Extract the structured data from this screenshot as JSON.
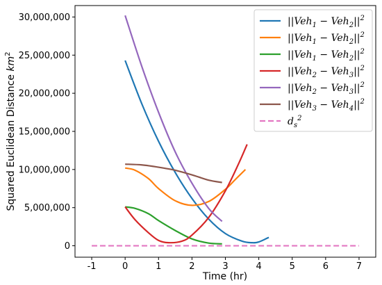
{
  "chart_data": {
    "type": "line",
    "xlabel": "Time (hr)",
    "ylabel": "Squared Euclidean Distance km²",
    "xlim": [
      -1.5,
      7.5
    ],
    "ylim": [
      -1500000,
      31500000
    ],
    "xticks": [
      -1,
      0,
      1,
      2,
      3,
      4,
      5,
      6,
      7
    ],
    "xtick_labels": [
      "-1",
      "0",
      "1",
      "2",
      "3",
      "4",
      "5",
      "6",
      "7"
    ],
    "yticks": [
      0,
      5000000,
      10000000,
      15000000,
      20000000,
      25000000,
      30000000
    ],
    "ytick_labels": [
      "0",
      "5,000,000",
      "10,000,000",
      "15,000,000",
      "20,000,000",
      "25,000,000",
      "30,000,000"
    ],
    "grid": false,
    "legend_position": "top-right",
    "series": [
      {
        "name": "||Veh₁ − Veh₂||²",
        "color": "#1f77b4",
        "x": [
          0,
          0.5,
          1.0,
          1.5,
          2.0,
          2.5,
          3.0,
          3.5,
          3.8,
          4.0,
          4.3
        ],
        "y": [
          24300000,
          18600000,
          13700000,
          9600000,
          6200000,
          3500000,
          1600000,
          600000,
          400000,
          500000,
          1100000
        ]
      },
      {
        "name": "||Veh₁ − Veh₂||²",
        "color": "#ff7f0e",
        "x": [
          0,
          0.3,
          0.7,
          1.0,
          1.5,
          2.0,
          2.5,
          3.0,
          3.3,
          3.6
        ],
        "y": [
          10200000,
          9900000,
          8800000,
          7500000,
          5900000,
          5300000,
          5800000,
          7400000,
          8700000,
          10000000
        ]
      },
      {
        "name": "||Veh₁ − Veh₂||²",
        "color": "#2ca02c",
        "x": [
          0,
          0.3,
          0.7,
          1.0,
          1.5,
          2.0,
          2.5,
          2.9
        ],
        "y": [
          5100000,
          4900000,
          4200000,
          3300000,
          2000000,
          900000,
          350000,
          250000
        ]
      },
      {
        "name": "||Veh₂ − Veh₃||²",
        "color": "#d62728",
        "x": [
          0,
          0.3,
          0.7,
          1.0,
          1.3,
          1.7,
          2.0,
          2.5,
          3.0,
          3.4,
          3.65
        ],
        "y": [
          5100000,
          3400000,
          1700000,
          700000,
          400000,
          600000,
          1400000,
          3700000,
          7200000,
          10800000,
          13300000
        ]
      },
      {
        "name": "||Veh₂ − Veh₃||²",
        "color": "#9467bd",
        "x": [
          0,
          0.5,
          1.0,
          1.5,
          2.0,
          2.5,
          2.9
        ],
        "y": [
          30200000,
          23500000,
          17500000,
          12300000,
          8200000,
          4900000,
          3200000
        ]
      },
      {
        "name": "||Veh₃ − Veh₄||²",
        "color": "#8c564b",
        "x": [
          0,
          0.5,
          1.0,
          1.5,
          2.0,
          2.5,
          2.9
        ],
        "y": [
          10700000,
          10600000,
          10300000,
          9900000,
          9300000,
          8600000,
          8300000
        ]
      },
      {
        "name": "d_s²",
        "color": "#e377c2",
        "dashed": true,
        "x": [
          -1,
          7
        ],
        "y": [
          0,
          0
        ]
      }
    ]
  },
  "legend": {
    "entries": [
      {
        "pre": "||Veh",
        "sub1": "1",
        "mid": " − Veh",
        "sub2": "2",
        "post": "||",
        "sup": "2"
      },
      {
        "pre": "||Veh",
        "sub1": "1",
        "mid": " − Veh",
        "sub2": "2",
        "post": "||",
        "sup": "2"
      },
      {
        "pre": "||Veh",
        "sub1": "1",
        "mid": " − Veh",
        "sub2": "2",
        "post": "||",
        "sup": "2"
      },
      {
        "pre": "||Veh",
        "sub1": "2",
        "mid": " − Veh",
        "sub2": "3",
        "post": "||",
        "sup": "2"
      },
      {
        "pre": "||Veh",
        "sub1": "2",
        "mid": " − Veh",
        "sub2": "3",
        "post": "||",
        "sup": "2"
      },
      {
        "pre": "||Veh",
        "sub1": "3",
        "mid": " − Veh",
        "sub2": "4",
        "post": "||",
        "sup": "2"
      },
      {
        "pre": "d",
        "sub1": "s",
        "mid": "",
        "sub2": "",
        "post": "",
        "sup": "2"
      }
    ]
  }
}
